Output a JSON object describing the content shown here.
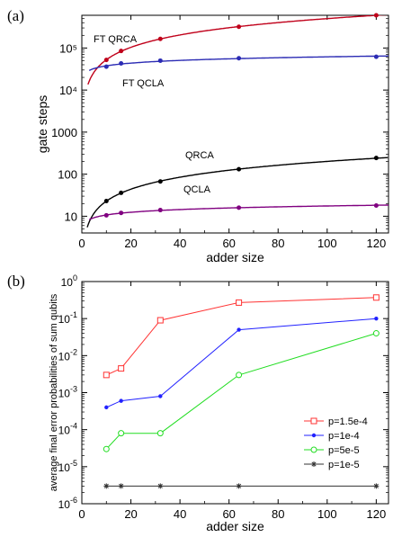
{
  "chart_data": [
    {
      "panel_label": "(a)",
      "type": "line",
      "xlabel": "adder size",
      "ylabel": "gate steps",
      "xlim": [
        0,
        125
      ],
      "ylim": [
        4,
        600000
      ],
      "yscale": "log",
      "x_ticks": [
        "0",
        "20",
        "40",
        "60",
        "80",
        "100",
        "120"
      ],
      "y_ticks": [
        "10",
        "100",
        "1000",
        "10⁴",
        "10⁵"
      ],
      "series": [
        {
          "name": "FT QRCA",
          "color": "#c0001a",
          "points": [
            [
              10,
              52000
            ],
            [
              16,
              85000
            ],
            [
              32,
              165000
            ],
            [
              64,
              320000
            ],
            [
              120,
              600000
            ]
          ]
        },
        {
          "name": "FT QCLA",
          "color": "#2b2bb4",
          "points": [
            [
              10,
              36000
            ],
            [
              16,
              43000
            ],
            [
              32,
              50000
            ],
            [
              64,
              57000
            ],
            [
              120,
              62000
            ]
          ]
        },
        {
          "name": "QRCA",
          "color": "#000000",
          "points": [
            [
              10,
              23
            ],
            [
              16,
              36
            ],
            [
              32,
              67
            ],
            [
              64,
              131
            ],
            [
              120,
              243
            ]
          ]
        },
        {
          "name": "QCLA",
          "color": "#800080",
          "points": [
            [
              10,
              10.5
            ],
            [
              16,
              12
            ],
            [
              32,
              14
            ],
            [
              64,
              16
            ],
            [
              120,
              18
            ]
          ]
        }
      ]
    },
    {
      "panel_label": "(b)",
      "type": "line",
      "xlabel": "adder size",
      "ylabel": "average final error probabilities of sum qubits",
      "xlim": [
        0,
        125
      ],
      "ylim": [
        1e-06,
        1
      ],
      "yscale": "log",
      "x_ticks": [
        "0",
        "20",
        "40",
        "60",
        "80",
        "100",
        "120"
      ],
      "y_ticks": [
        {
          "base": "10",
          "exp": "0"
        },
        {
          "base": "10",
          "exp": "-1"
        },
        {
          "base": "10",
          "exp": "-2"
        },
        {
          "base": "10",
          "exp": "-3"
        },
        {
          "base": "10",
          "exp": "-4"
        },
        {
          "base": "10",
          "exp": "-5"
        },
        {
          "base": "10",
          "exp": "-6"
        }
      ],
      "legend_position": "right",
      "series": [
        {
          "name": "p=1.5e-4",
          "color": "#ff3333",
          "marker": "square",
          "points": [
            [
              10,
              0.003
            ],
            [
              16,
              0.0045
            ],
            [
              32,
              0.09
            ],
            [
              64,
              0.27
            ],
            [
              120,
              0.37
            ]
          ]
        },
        {
          "name": "p=1e-4",
          "color": "#2222ff",
          "marker": "dot",
          "points": [
            [
              10,
              0.0004
            ],
            [
              16,
              0.0006
            ],
            [
              32,
              0.0008
            ],
            [
              64,
              0.05
            ],
            [
              120,
              0.1
            ]
          ]
        },
        {
          "name": "p=5e-5",
          "color": "#22dd22",
          "marker": "circle",
          "points": [
            [
              10,
              3e-05
            ],
            [
              16,
              8e-05
            ],
            [
              32,
              8e-05
            ],
            [
              64,
              0.003
            ],
            [
              120,
              0.04
            ]
          ]
        },
        {
          "name": "p=1e-5",
          "color": "#333333",
          "marker": "star",
          "points": [
            [
              10,
              3e-06
            ],
            [
              16,
              3e-06
            ],
            [
              32,
              3e-06
            ],
            [
              64,
              3e-06
            ],
            [
              120,
              3e-06
            ]
          ]
        }
      ]
    }
  ]
}
